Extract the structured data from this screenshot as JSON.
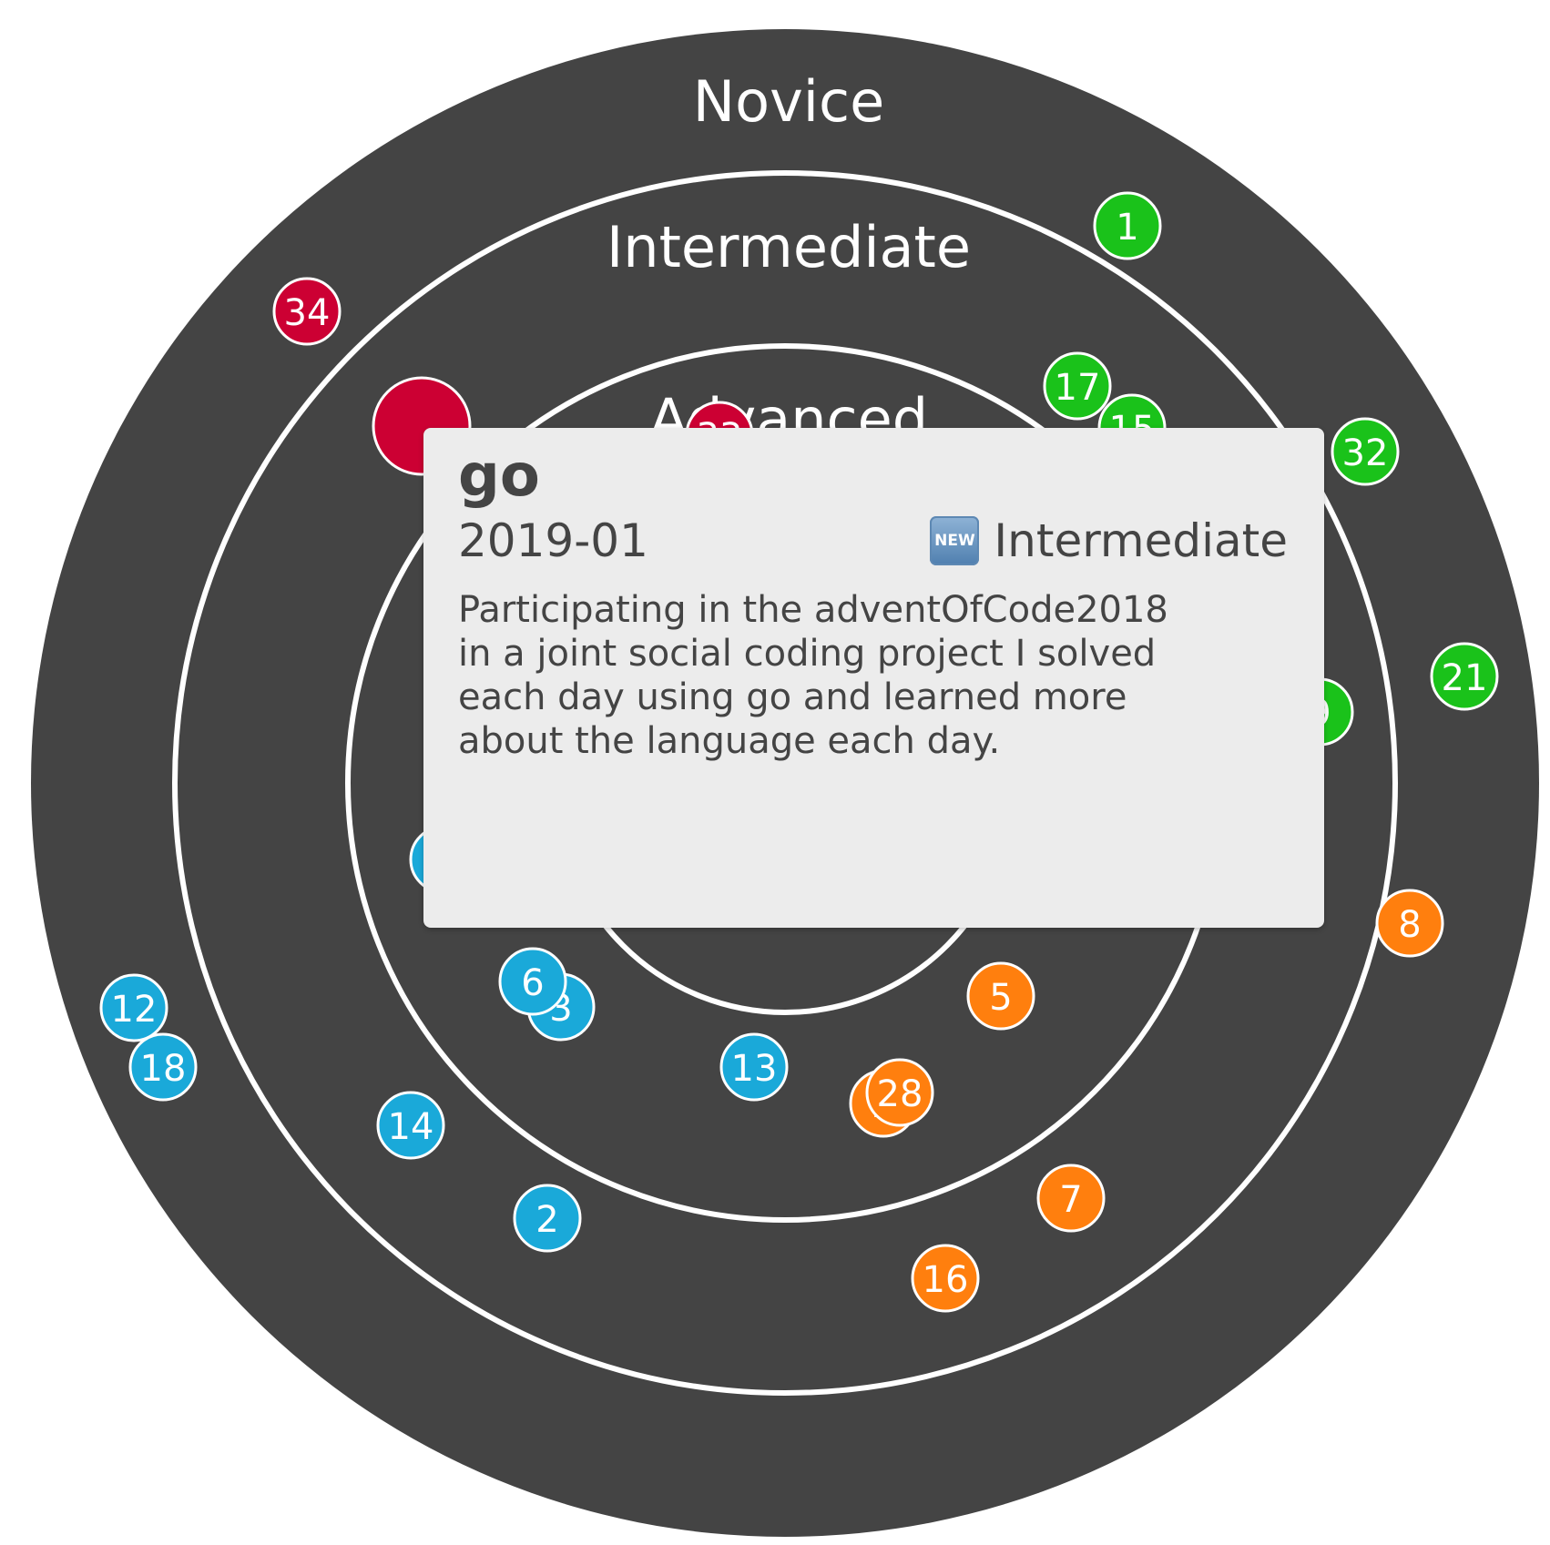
{
  "rings": [
    {
      "label": "Novice"
    },
    {
      "label": "Intermediate"
    },
    {
      "label": "Advanced"
    },
    {
      "label": ""
    }
  ],
  "colors": {
    "background": "#444444",
    "ring_line": "#ffffff",
    "green": "#1ac21a",
    "red": "#cc0033",
    "blue": "#1aa9d9",
    "orange": "#ff7f0e",
    "tooltip_bg": "#ececec",
    "tooltip_text": "#444444"
  },
  "blips": [
    {
      "label": "1",
      "color": "green"
    },
    {
      "label": "17",
      "color": "green"
    },
    {
      "label": "15",
      "color": "green"
    },
    {
      "label": "32",
      "color": "green"
    },
    {
      "label": "21",
      "color": "green"
    },
    {
      "label": "9",
      "color": "green"
    },
    {
      "label": "34",
      "color": "red"
    },
    {
      "label": "",
      "color": "red"
    },
    {
      "label": "33",
      "color": "red"
    },
    {
      "label": "12",
      "color": "blue"
    },
    {
      "label": "18",
      "color": "blue"
    },
    {
      "label": "14",
      "color": "blue"
    },
    {
      "label": "2",
      "color": "blue"
    },
    {
      "label": "13",
      "color": "blue"
    },
    {
      "label": "3",
      "color": "blue"
    },
    {
      "label": "6",
      "color": "blue"
    },
    {
      "label": "",
      "color": "blue"
    },
    {
      "label": "8",
      "color": "orange"
    },
    {
      "label": "5",
      "color": "orange"
    },
    {
      "label": "2",
      "color": "orange"
    },
    {
      "label": "28",
      "color": "orange"
    },
    {
      "label": "7",
      "color": "orange"
    },
    {
      "label": "16",
      "color": "orange"
    }
  ],
  "tooltip": {
    "title": "go",
    "date": "2019-01",
    "status_icon": "new-icon",
    "status_icon_text": "NEW",
    "ring": "Intermediate",
    "description": "Participating in the adventOfCode2018 in a joint social coding project I solved each day using go and learned more about the language each day."
  }
}
